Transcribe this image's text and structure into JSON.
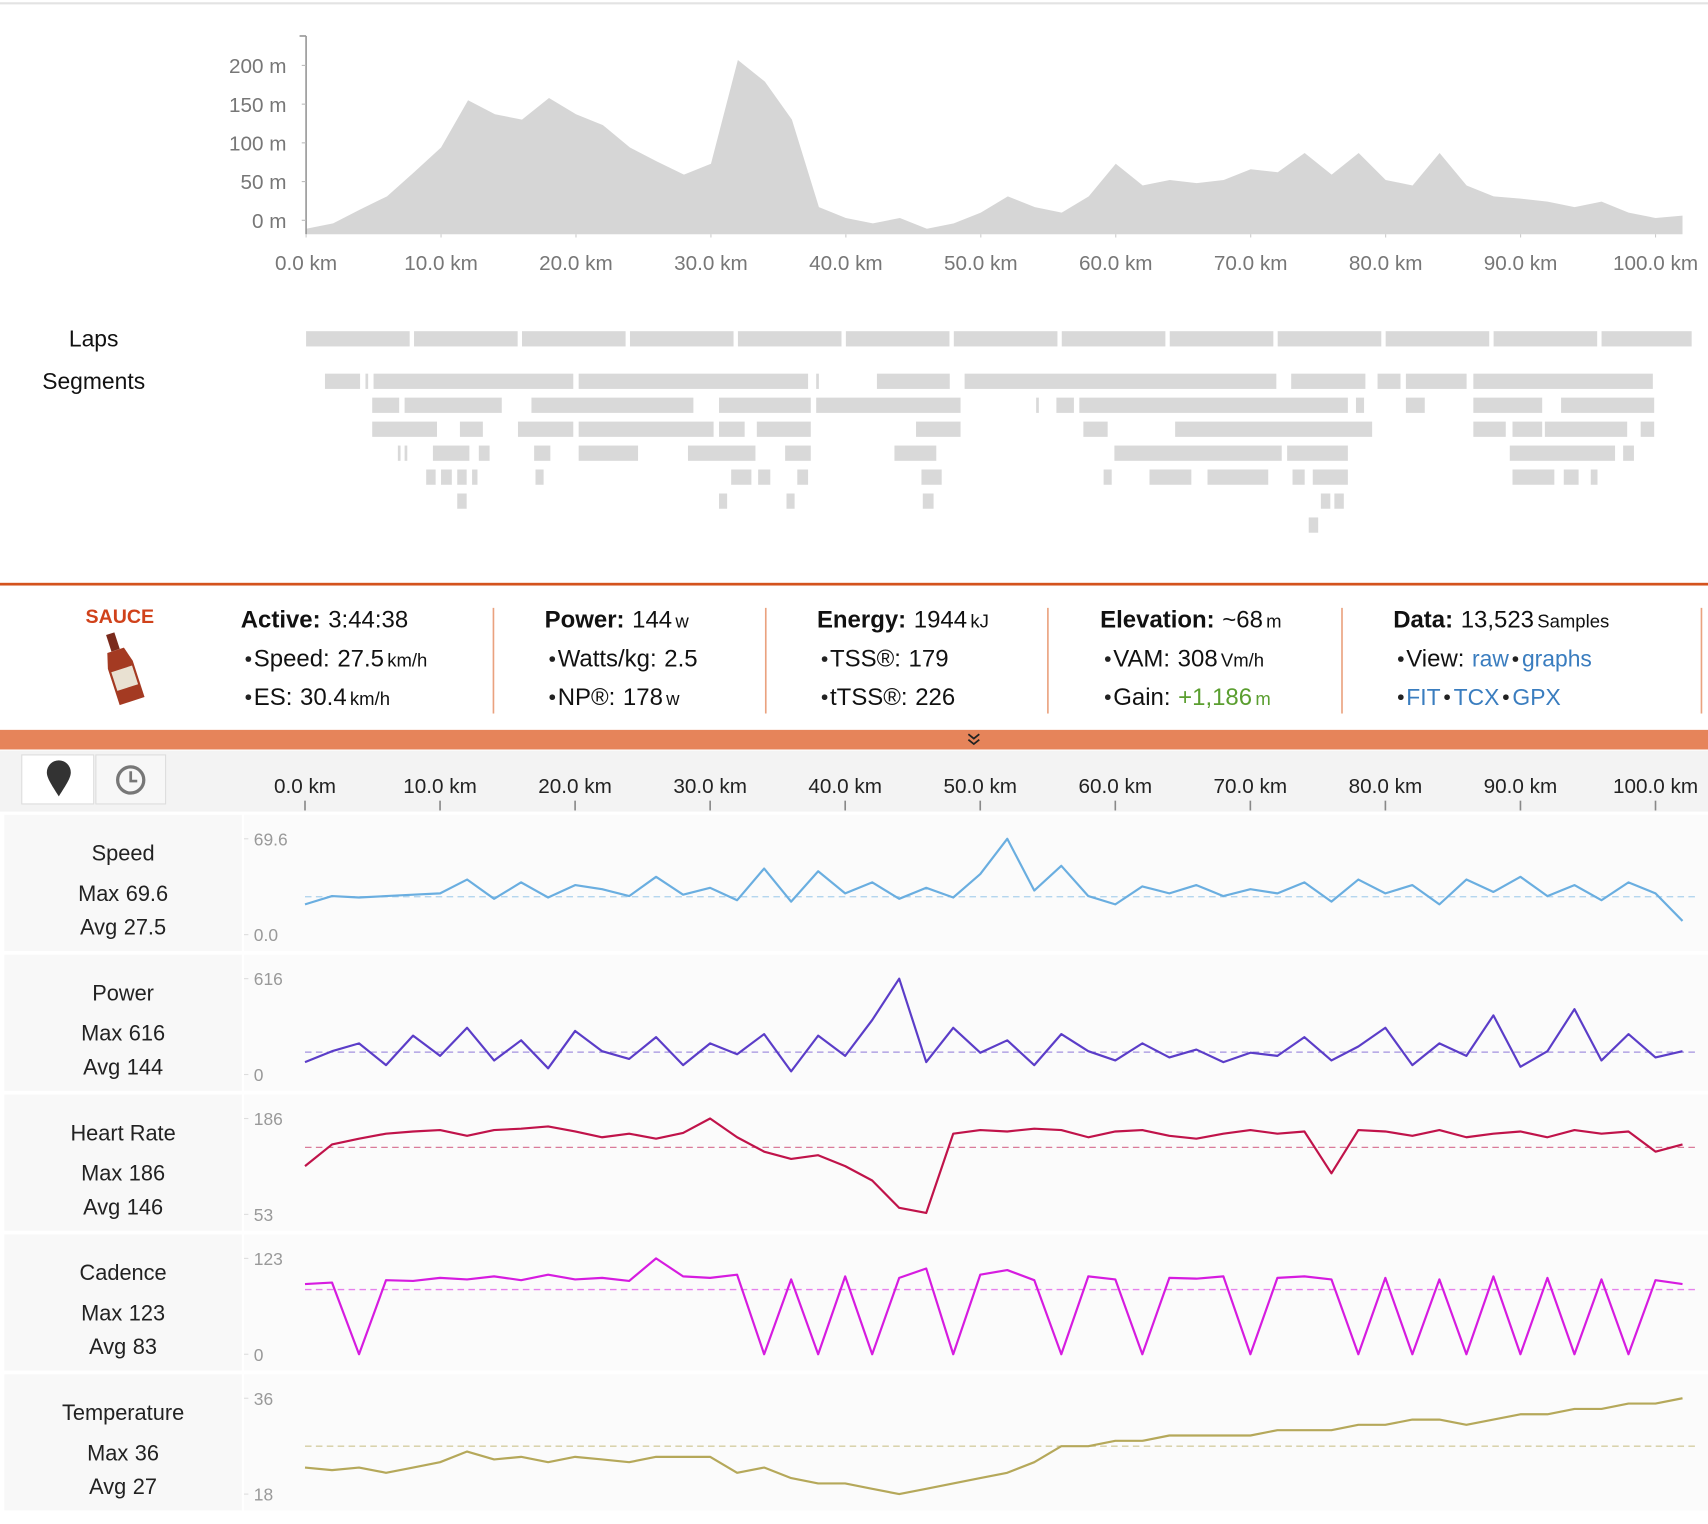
{
  "elevation": {
    "type": "area",
    "color": "#d6d6d6",
    "x": [
      0,
      2,
      4,
      6,
      8,
      10,
      12,
      14,
      16,
      18,
      20,
      22,
      24,
      26,
      28,
      30,
      32,
      34,
      36,
      38,
      40,
      42,
      44,
      46,
      48,
      50,
      52,
      54,
      56,
      58,
      60,
      62,
      64,
      66,
      68,
      70,
      72,
      74,
      76,
      78,
      80,
      82,
      84,
      86,
      88,
      90,
      92,
      94,
      96,
      98,
      100,
      102
    ],
    "values": [
      -11,
      -4,
      14,
      31,
      62,
      94,
      155,
      137,
      130,
      158,
      137,
      123,
      94,
      76,
      59,
      73,
      207,
      179,
      130,
      17,
      3,
      -4,
      3,
      -11,
      -4,
      10,
      31,
      17,
      10,
      31,
      73,
      45,
      52,
      48,
      52,
      66,
      62,
      87,
      59,
      87,
      52,
      45,
      87,
      45,
      31,
      28,
      24,
      17,
      24,
      10,
      3,
      6
    ],
    "xlim": [
      0,
      103
    ],
    "ylim": [
      -18,
      238
    ],
    "xticks": [
      {
        "value": 0,
        "label": "0.0 km"
      },
      {
        "value": 10,
        "label": "10.0 km"
      },
      {
        "value": 20,
        "label": "20.0 km"
      },
      {
        "value": 30,
        "label": "30.0 km"
      },
      {
        "value": 40,
        "label": "40.0 km"
      },
      {
        "value": 50,
        "label": "50.0 km"
      },
      {
        "value": 60,
        "label": "60.0 km"
      },
      {
        "value": 70,
        "label": "70.0 km"
      },
      {
        "value": 80,
        "label": "80.0 km"
      },
      {
        "value": 90,
        "label": "90.0 km"
      },
      {
        "value": 100,
        "label": "100.0 km"
      }
    ],
    "yticks": [
      {
        "value": 0,
        "label": "0 m"
      },
      {
        "value": 50,
        "label": "50 m"
      },
      {
        "value": 100,
        "label": "100 m"
      },
      {
        "value": 150,
        "label": "150 m"
      },
      {
        "value": 200,
        "label": "200 m"
      }
    ]
  },
  "laps": {
    "label": "Laps",
    "ranges": [
      [
        0,
        8
      ],
      [
        8,
        16
      ],
      [
        16,
        24
      ],
      [
        24,
        32
      ],
      [
        32,
        40
      ],
      [
        40,
        48
      ],
      [
        48,
        56
      ],
      [
        56,
        64
      ],
      [
        64,
        72
      ],
      [
        72,
        80
      ],
      [
        80,
        88
      ],
      [
        88,
        96
      ],
      [
        96,
        103
      ]
    ]
  },
  "segments": {
    "label": "Segments",
    "rows": [
      [
        [
          1.4,
          4.0
        ],
        [
          4.4,
          4.6
        ],
        [
          5.0,
          19.8
        ],
        [
          20.2,
          37.2
        ],
        [
          37.8,
          38.0
        ],
        [
          42.3,
          47.7
        ],
        [
          48.8,
          71.9
        ],
        [
          73.0,
          78.5
        ],
        [
          79.4,
          81.1
        ],
        [
          81.5,
          86.0
        ],
        [
          86.5,
          99.8
        ]
      ],
      [
        [
          4.9,
          6.9
        ],
        [
          7.3,
          14.5
        ],
        [
          16.7,
          28.7
        ],
        [
          30.6,
          37.4
        ],
        [
          37.8,
          48.5
        ],
        [
          54.1,
          54.3
        ],
        [
          55.6,
          56.9
        ],
        [
          57.3,
          77.2
        ],
        [
          77.8,
          78.4
        ],
        [
          81.5,
          82.9
        ],
        [
          86.5,
          91.6
        ],
        [
          93.0,
          99.9
        ]
      ],
      [
        [
          4.9,
          9.7
        ],
        [
          11.4,
          13.1
        ],
        [
          15.7,
          19.8
        ],
        [
          20.2,
          30.2
        ],
        [
          30.6,
          32.5
        ],
        [
          33.4,
          37.4
        ],
        [
          45.2,
          48.5
        ],
        [
          57.6,
          59.4
        ],
        [
          64.4,
          79.0
        ],
        [
          86.5,
          88.9
        ],
        [
          89.4,
          91.6
        ],
        [
          91.8,
          97.9
        ],
        [
          98.9,
          99.9
        ]
      ],
      [
        [
          6.8,
          7.0
        ],
        [
          7.3,
          7.5
        ],
        [
          9.4,
          12.1
        ],
        [
          12.8,
          13.6
        ],
        [
          16.9,
          18.1
        ],
        [
          20.2,
          24.6
        ],
        [
          28.3,
          33.3
        ],
        [
          35.5,
          37.4
        ],
        [
          43.6,
          46.7
        ],
        [
          59.9,
          72.3
        ],
        [
          72.7,
          77.2
        ],
        [
          89.2,
          97.0
        ],
        [
          97.6,
          98.4
        ]
      ],
      [
        [
          8.9,
          9.6
        ],
        [
          10.0,
          10.8
        ],
        [
          11.2,
          11.9
        ],
        [
          12.3,
          12.7
        ],
        [
          17.0,
          17.6
        ],
        [
          31.5,
          33.0
        ],
        [
          33.5,
          34.4
        ],
        [
          36.4,
          37.2
        ],
        [
          45.6,
          47.1
        ],
        [
          59.1,
          59.7
        ],
        [
          62.5,
          65.6
        ],
        [
          66.8,
          71.3
        ],
        [
          73.1,
          74.0
        ],
        [
          74.6,
          77.2
        ],
        [
          89.4,
          92.5
        ],
        [
          93.2,
          94.3
        ],
        [
          95.2,
          95.7
        ]
      ],
      [
        [
          11.2,
          11.9
        ],
        [
          30.6,
          31.2
        ],
        [
          35.6,
          36.2
        ],
        [
          45.7,
          46.5
        ],
        [
          75.2,
          75.9
        ],
        [
          76.2,
          76.9
        ]
      ],
      [
        [
          74.3,
          75.0
        ]
      ]
    ]
  },
  "summary": {
    "logo": "SAUCE",
    "columns": [
      {
        "label": "Active:",
        "value": "3:44:38",
        "items": [
          {
            "label": "Speed:",
            "value": 27.5,
            "unit": "km/h"
          },
          {
            "label": "ES:",
            "value": 30.4,
            "unit": "km/h"
          }
        ]
      },
      {
        "label": "Power:",
        "value": 144,
        "unit": "w",
        "items": [
          {
            "label": "Watts/kg:",
            "value": 2.5
          },
          {
            "label": "NP®:",
            "value": 178,
            "unit": "w"
          }
        ]
      },
      {
        "label": "Energy:",
        "value": 1944,
        "unit": "kJ",
        "items": [
          {
            "label": "TSS®:",
            "value": 179
          },
          {
            "label": "tTSS®:",
            "value": 226
          }
        ]
      },
      {
        "label": "Elevation:",
        "value": "~68",
        "unit": "m",
        "items": [
          {
            "label": "VAM:",
            "value": 308,
            "unit": "Vm/h"
          },
          {
            "label": "Gain:",
            "value": "+1,186",
            "unit": "m",
            "color": "#5a9e2f"
          }
        ]
      },
      {
        "label": "Data:",
        "value": "13,523",
        "unit": "Samples",
        "items": [
          {
            "label": "View:",
            "links": [
              "raw",
              "graphs"
            ]
          },
          {
            "links": [
              "FIT",
              "TCX",
              "GPX"
            ]
          }
        ]
      }
    ]
  },
  "streams": {
    "x": [
      0,
      2,
      4,
      6,
      8,
      10,
      12,
      14,
      16,
      18,
      20,
      22,
      24,
      26,
      28,
      30,
      32,
      34,
      36,
      38,
      40,
      42,
      44,
      46,
      48,
      50,
      52,
      54,
      56,
      58,
      60,
      62,
      64,
      66,
      68,
      70,
      72,
      74,
      76,
      78,
      80,
      82,
      84,
      86,
      88,
      90,
      92,
      94,
      96,
      98,
      100,
      102
    ],
    "xlim": [
      0,
      103
    ],
    "xticks": [
      {
        "value": 0,
        "label": "0.0 km"
      },
      {
        "value": 10,
        "label": "10.0 km"
      },
      {
        "value": 20,
        "label": "20.0 km"
      },
      {
        "value": 30,
        "label": "30.0 km"
      },
      {
        "value": 40,
        "label": "40.0 km"
      },
      {
        "value": 50,
        "label": "50.0 km"
      },
      {
        "value": 60,
        "label": "60.0 km"
      },
      {
        "value": 70,
        "label": "70.0 km"
      },
      {
        "value": 80,
        "label": "80.0 km"
      },
      {
        "value": 90,
        "label": "90.0 km"
      },
      {
        "value": 100,
        "label": "100.0 km"
      }
    ],
    "charts": [
      {
        "type": "line",
        "name": "Speed",
        "color": "#6aaee0",
        "max_label": "Max",
        "max": 69.6,
        "avg_label": "Avg",
        "avg": 27.5,
        "ylim": [
          0,
          69.6
        ],
        "yticks": [
          {
            "value": 0,
            "label": "0.0"
          },
          69.6
        ],
        "values": [
          22,
          28,
          27,
          28,
          29,
          30,
          40,
          26,
          38,
          27,
          36,
          33,
          28,
          42,
          29,
          34,
          25,
          48,
          24,
          46,
          30,
          38,
          26,
          34,
          27,
          44,
          69.6,
          32,
          50,
          28,
          22,
          35,
          30,
          36,
          28,
          33,
          30,
          38,
          24,
          40,
          30,
          36,
          22,
          40,
          31,
          42,
          28,
          36,
          25,
          38,
          30,
          10
        ]
      },
      {
        "type": "line",
        "name": "Power",
        "color": "#5b3dc8",
        "max_label": "Max",
        "max": 616,
        "avg_label": "Avg",
        "avg": 144,
        "ylim": [
          0,
          616
        ],
        "yticks": [
          0,
          616
        ],
        "values": [
          80,
          150,
          200,
          60,
          250,
          120,
          300,
          90,
          220,
          40,
          280,
          150,
          100,
          240,
          60,
          200,
          130,
          260,
          20,
          250,
          120,
          350,
          616,
          80,
          300,
          140,
          220,
          60,
          260,
          150,
          90,
          200,
          110,
          160,
          80,
          140,
          120,
          240,
          90,
          180,
          300,
          60,
          200,
          120,
          380,
          50,
          150,
          420,
          90,
          260,
          110,
          150
        ]
      },
      {
        "type": "line",
        "name": "Heart Rate",
        "color": "#c0134a",
        "max_label": "Max",
        "max": 186,
        "avg_label": "Avg",
        "avg": 146,
        "ylim": [
          53,
          186
        ],
        "yticks": [
          53,
          186
        ],
        "values": [
          120,
          150,
          158,
          165,
          168,
          170,
          162,
          170,
          172,
          175,
          168,
          160,
          165,
          158,
          166,
          186,
          160,
          140,
          130,
          135,
          120,
          100,
          62,
          55,
          165,
          170,
          168,
          172,
          170,
          160,
          168,
          170,
          162,
          158,
          165,
          170,
          165,
          168,
          110,
          170,
          168,
          162,
          170,
          160,
          165,
          168,
          160,
          170,
          165,
          168,
          140,
          150
        ]
      },
      {
        "type": "line",
        "name": "Cadence",
        "color": "#d61ce0",
        "max_label": "Max",
        "max": 123,
        "avg_label": "Avg",
        "avg": 83,
        "ylim": [
          0,
          123
        ],
        "yticks": [
          0,
          123
        ],
        "values": [
          90,
          92,
          0,
          95,
          94,
          98,
          96,
          100,
          95,
          102,
          96,
          98,
          94,
          123,
          100,
          98,
          102,
          0,
          96,
          0,
          100,
          0,
          98,
          110,
          0,
          102,
          108,
          95,
          0,
          100,
          96,
          0,
          98,
          97,
          100,
          0,
          98,
          100,
          96,
          0,
          98,
          0,
          96,
          0,
          100,
          0,
          98,
          0,
          96,
          0,
          95,
          90
        ]
      },
      {
        "type": "line",
        "name": "Temperature",
        "color": "#b5a85a",
        "max_label": "Max",
        "max": 36,
        "avg_label": "Avg",
        "avg": 27,
        "ylim": [
          18,
          36
        ],
        "yticks": [
          18,
          36
        ],
        "values": [
          23,
          22.5,
          23,
          22,
          23,
          24,
          26,
          24.5,
          25,
          24,
          25,
          24.5,
          24,
          25,
          25,
          25,
          22,
          23,
          21,
          20,
          20,
          19,
          18,
          19,
          20,
          21,
          22,
          24,
          27,
          27,
          28,
          28,
          29,
          29,
          29,
          29,
          30,
          30,
          30,
          31,
          31,
          32,
          32,
          31,
          32,
          33,
          33,
          34,
          34,
          35,
          35,
          36
        ]
      }
    ]
  }
}
